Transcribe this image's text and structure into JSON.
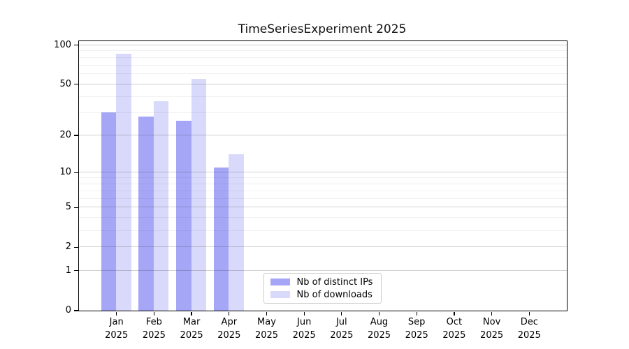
{
  "title": "TimeSeriesExperiment 2025",
  "chart_data": {
    "type": "bar",
    "title": "TimeSeriesExperiment 2025",
    "x_months": [
      "Jan",
      "Feb",
      "Mar",
      "Apr",
      "May",
      "Jun",
      "Jul",
      "Aug",
      "Sep",
      "Oct",
      "Nov",
      "Dec"
    ],
    "year": "2025",
    "categories": [
      "Jan 2025",
      "Feb 2025",
      "Mar 2025",
      "Apr 2025",
      "May 2025",
      "Jun 2025",
      "Jul 2025",
      "Aug 2025",
      "Sep 2025",
      "Oct 2025",
      "Nov 2025",
      "Dec 2025"
    ],
    "series": [
      {
        "name": "Nb of distinct IPs",
        "color": "#a6a6f7",
        "values": [
          30,
          28,
          26,
          11,
          0,
          0,
          0,
          0,
          0,
          0,
          0,
          0
        ]
      },
      {
        "name": "Nb of downloads",
        "color": "#d9d9fb",
        "values": [
          85,
          37,
          55,
          14,
          0,
          0,
          0,
          0,
          0,
          0,
          0,
          0
        ]
      }
    ],
    "yscale": "log1p",
    "ylim": [
      0,
      107
    ],
    "y_major_ticks": [
      0,
      1,
      2,
      5,
      10,
      20,
      50,
      100
    ],
    "y_major_labels": [
      "0",
      "1",
      "2",
      "5",
      "10",
      "20",
      "50",
      "100"
    ],
    "y_minor_ticks": [
      3,
      4,
      6,
      7,
      8,
      9,
      30,
      40,
      60,
      70,
      80,
      90
    ],
    "xlabel": "",
    "ylabel": "",
    "grid": "on",
    "legend_position": "inside lower center"
  },
  "legend": {
    "items": [
      {
        "label": "Nb of distinct IPs",
        "color": "#a6a6f7"
      },
      {
        "label": "Nb of downloads",
        "color": "#d9d9fb"
      }
    ]
  },
  "colors": {
    "background": "#ffffff",
    "spine": "#000000",
    "text": "#000000",
    "ips_bar": "#a6a6f7",
    "downloads_bar": "#d9d9fb"
  }
}
